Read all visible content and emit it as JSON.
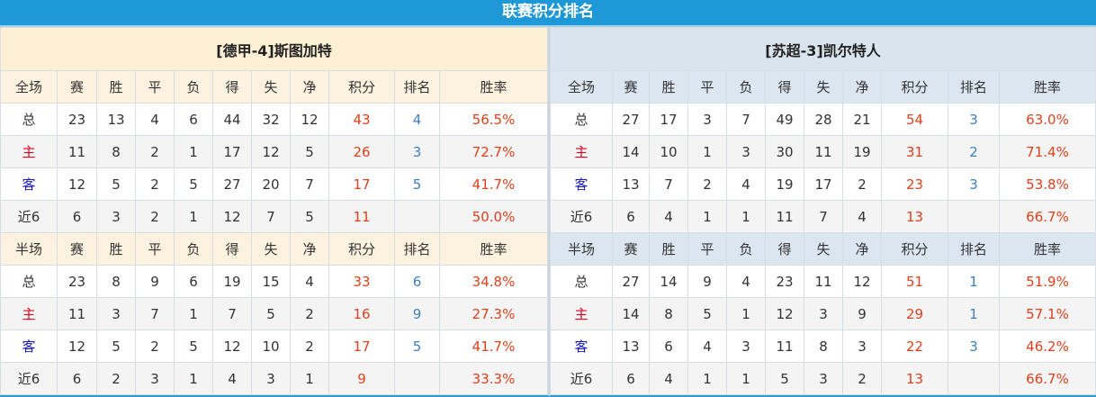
{
  "title": "联赛积分排名",
  "columns_full": [
    "全场",
    "赛",
    "胜",
    "平",
    "负",
    "得",
    "失",
    "净",
    "积分",
    "排名",
    "胜率"
  ],
  "columns_half": [
    "半场",
    "赛",
    "胜",
    "平",
    "负",
    "得",
    "失",
    "净",
    "积分",
    "排名",
    "胜率"
  ],
  "teams": [
    {
      "name": "[德甲-4]斯图加特",
      "full": [
        [
          "总",
          "23",
          "13",
          "4",
          "6",
          "44",
          "32",
          "12",
          "43",
          "4",
          "56.5%"
        ],
        [
          "主",
          "11",
          "8",
          "2",
          "1",
          "17",
          "12",
          "5",
          "26",
          "3",
          "72.7%"
        ],
        [
          "客",
          "12",
          "5",
          "2",
          "5",
          "27",
          "20",
          "7",
          "17",
          "5",
          "41.7%"
        ],
        [
          "近6",
          "6",
          "3",
          "2",
          "1",
          "12",
          "7",
          "5",
          "11",
          "",
          "50.0%"
        ]
      ],
      "half": [
        [
          "总",
          "23",
          "8",
          "9",
          "6",
          "19",
          "15",
          "4",
          "33",
          "6",
          "34.8%"
        ],
        [
          "主",
          "11",
          "3",
          "7",
          "1",
          "7",
          "5",
          "2",
          "16",
          "9",
          "27.3%"
        ],
        [
          "客",
          "12",
          "5",
          "2",
          "5",
          "12",
          "10",
          "2",
          "17",
          "5",
          "41.7%"
        ],
        [
          "近6",
          "6",
          "2",
          "3",
          "1",
          "4",
          "3",
          "1",
          "9",
          "",
          "33.3%"
        ]
      ]
    },
    {
      "name": "[苏超-3]凯尔特人",
      "full": [
        [
          "总",
          "27",
          "17",
          "3",
          "7",
          "49",
          "28",
          "21",
          "54",
          "3",
          "63.0%"
        ],
        [
          "主",
          "14",
          "10",
          "1",
          "3",
          "30",
          "11",
          "19",
          "31",
          "2",
          "71.4%"
        ],
        [
          "客",
          "13",
          "7",
          "2",
          "4",
          "19",
          "17",
          "2",
          "23",
          "3",
          "53.8%"
        ],
        [
          "近6",
          "6",
          "4",
          "1",
          "1",
          "11",
          "7",
          "4",
          "13",
          "",
          "66.7%"
        ]
      ],
      "half": [
        [
          "总",
          "27",
          "14",
          "9",
          "4",
          "23",
          "11",
          "12",
          "51",
          "1",
          "51.9%"
        ],
        [
          "主",
          "14",
          "8",
          "5",
          "1",
          "12",
          "3",
          "9",
          "29",
          "1",
          "57.1%"
        ],
        [
          "客",
          "13",
          "6",
          "4",
          "3",
          "11",
          "8",
          "3",
          "22",
          "3",
          "46.2%"
        ],
        [
          "近6",
          "6",
          "4",
          "1",
          "1",
          "5",
          "3",
          "2",
          "13",
          "",
          "66.7%"
        ]
      ]
    }
  ]
}
